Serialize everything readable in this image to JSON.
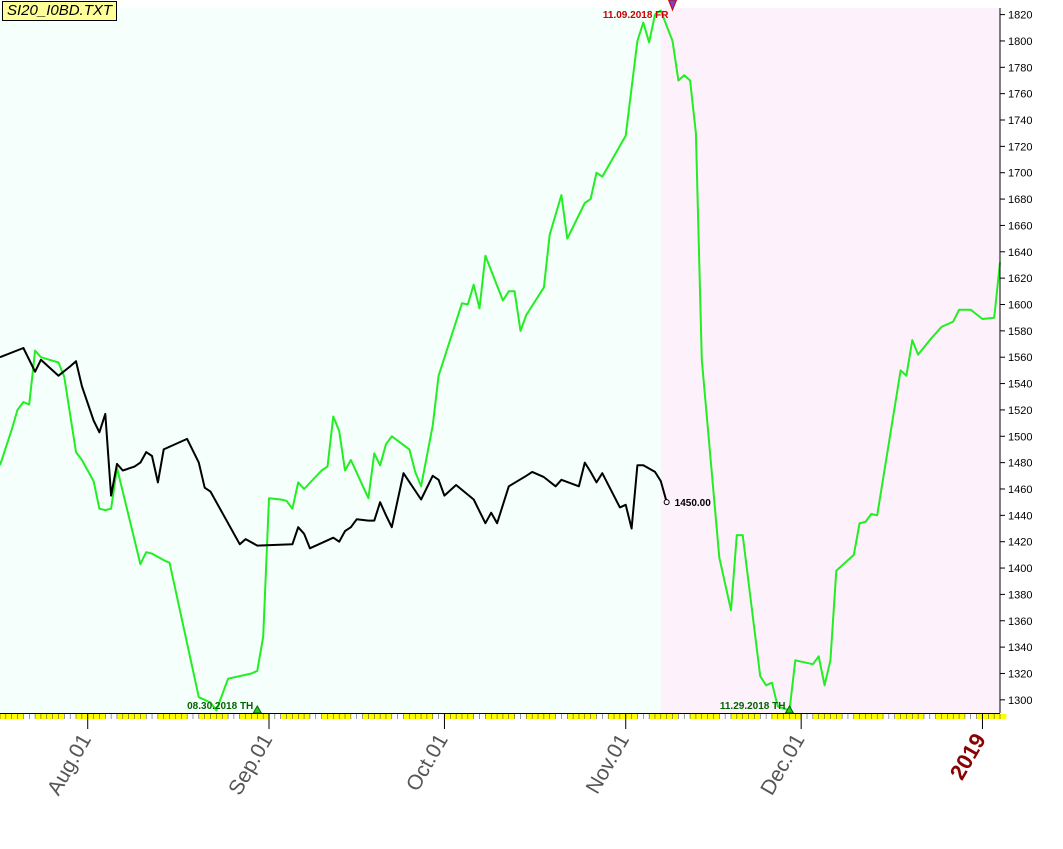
{
  "title": "SI20_I0BD.TXT",
  "chart_data": {
    "type": "line",
    "y_axis": {
      "side": "right",
      "ylim": [
        1290,
        1825
      ],
      "ticks": [
        1300,
        1320,
        1340,
        1360,
        1380,
        1400,
        1420,
        1440,
        1460,
        1480,
        1500,
        1520,
        1540,
        1560,
        1580,
        1600,
        1620,
        1640,
        1660,
        1680,
        1700,
        1720,
        1740,
        1760,
        1780,
        1800,
        1820
      ]
    },
    "x_axis": {
      "xlim": [
        "2018-07-17",
        "2019-01-04"
      ],
      "month_labels": [
        {
          "date": "2018-08-01",
          "label": "Aug.01"
        },
        {
          "date": "2018-09-01",
          "label": "Sep.01"
        },
        {
          "date": "2018-10-01",
          "label": "Oct.01"
        },
        {
          "date": "2018-11-01",
          "label": "Nov.01"
        },
        {
          "date": "2018-12-01",
          "label": "Dec.01"
        },
        {
          "date": "2019-01-01",
          "label": "2019",
          "is_year": true
        }
      ]
    },
    "regions": [
      {
        "from": "2018-07-17",
        "to": "2018-11-07",
        "color": "#f5fffc"
      },
      {
        "from": "2018-11-07",
        "to": "2019-01-04",
        "color": "#fdf2fb"
      }
    ],
    "series": [
      {
        "color": "#22ee22",
        "points": [
          [
            "2018-07-17",
            1478
          ],
          [
            "2018-07-19",
            1505
          ],
          [
            "2018-07-20",
            1520
          ],
          [
            "2018-07-21",
            1526
          ],
          [
            "2018-07-22",
            1524
          ],
          [
            "2018-07-23",
            1565
          ],
          [
            "2018-07-24",
            1560
          ],
          [
            "2018-07-27",
            1556
          ],
          [
            "2018-07-28",
            1545
          ],
          [
            "2018-07-30",
            1488
          ],
          [
            "2018-07-31",
            1482
          ],
          [
            "2018-08-02",
            1466
          ],
          [
            "2018-08-03",
            1445
          ],
          [
            "2018-08-04",
            1444
          ],
          [
            "2018-08-05",
            1445
          ],
          [
            "2018-08-06",
            1476
          ],
          [
            "2018-08-10",
            1403
          ],
          [
            "2018-08-11",
            1412
          ],
          [
            "2018-08-12",
            1411
          ],
          [
            "2018-08-14",
            1406
          ],
          [
            "2018-08-15",
            1404
          ],
          [
            "2018-08-20",
            1302
          ],
          [
            "2018-08-22",
            1298
          ],
          [
            "2018-08-23",
            1292
          ],
          [
            "2018-08-25",
            1316
          ],
          [
            "2018-08-29",
            1320
          ],
          [
            "2018-08-30",
            1322
          ],
          [
            "2018-08-31",
            1348
          ],
          [
            "2018-09-01",
            1453
          ],
          [
            "2018-09-03",
            1452
          ],
          [
            "2018-09-04",
            1451
          ],
          [
            "2018-09-05",
            1445
          ],
          [
            "2018-09-06",
            1465
          ],
          [
            "2018-09-07",
            1460
          ],
          [
            "2018-09-10",
            1474
          ],
          [
            "2018-09-11",
            1477
          ],
          [
            "2018-09-12",
            1515
          ],
          [
            "2018-09-13",
            1504
          ],
          [
            "2018-09-14",
            1474
          ],
          [
            "2018-09-15",
            1482
          ],
          [
            "2018-09-18",
            1453
          ],
          [
            "2018-09-19",
            1487
          ],
          [
            "2018-09-20",
            1478
          ],
          [
            "2018-09-21",
            1494
          ],
          [
            "2018-09-22",
            1500
          ],
          [
            "2018-09-25",
            1490
          ],
          [
            "2018-09-26",
            1473
          ],
          [
            "2018-09-27",
            1462
          ],
          [
            "2018-09-29",
            1508
          ],
          [
            "2018-09-30",
            1546
          ],
          [
            "2018-10-04",
            1601
          ],
          [
            "2018-10-05",
            1600
          ],
          [
            "2018-10-06",
            1615
          ],
          [
            "2018-10-07",
            1597
          ],
          [
            "2018-10-08",
            1637
          ],
          [
            "2018-10-11",
            1603
          ],
          [
            "2018-10-12",
            1610
          ],
          [
            "2018-10-13",
            1610
          ],
          [
            "2018-10-14",
            1580
          ],
          [
            "2018-10-15",
            1592
          ],
          [
            "2018-10-18",
            1613
          ],
          [
            "2018-10-19",
            1653
          ],
          [
            "2018-10-21",
            1683
          ],
          [
            "2018-10-22",
            1650
          ],
          [
            "2018-10-25",
            1677
          ],
          [
            "2018-10-26",
            1680
          ],
          [
            "2018-10-27",
            1700
          ],
          [
            "2018-10-28",
            1697
          ],
          [
            "2018-11-01",
            1728
          ],
          [
            "2018-11-03",
            1800
          ],
          [
            "2018-11-04",
            1814
          ],
          [
            "2018-11-05",
            1799
          ],
          [
            "2018-11-06",
            1820
          ],
          [
            "2018-11-07",
            1823
          ],
          [
            "2018-11-09",
            1800
          ],
          [
            "2018-11-10",
            1770
          ],
          [
            "2018-11-11",
            1774
          ],
          [
            "2018-11-12",
            1770
          ],
          [
            "2018-11-13",
            1730
          ],
          [
            "2018-11-14",
            1558
          ],
          [
            "2018-11-17",
            1408
          ],
          [
            "2018-11-19",
            1368
          ],
          [
            "2018-11-20",
            1425
          ],
          [
            "2018-11-21",
            1425
          ],
          [
            "2018-11-24",
            1318
          ],
          [
            "2018-11-25",
            1311
          ],
          [
            "2018-11-26",
            1313
          ],
          [
            "2018-11-27",
            1295
          ],
          [
            "2018-11-29",
            1292
          ],
          [
            "2018-11-30",
            1330
          ],
          [
            "2018-12-03",
            1327
          ],
          [
            "2018-12-04",
            1333
          ],
          [
            "2018-12-05",
            1311
          ],
          [
            "2018-12-06",
            1330
          ],
          [
            "2018-12-07",
            1398
          ],
          [
            "2018-12-10",
            1410
          ],
          [
            "2018-12-11",
            1434
          ],
          [
            "2018-12-12",
            1435
          ],
          [
            "2018-12-13",
            1441
          ],
          [
            "2018-12-14",
            1440
          ],
          [
            "2018-12-18",
            1550
          ],
          [
            "2018-12-19",
            1546
          ],
          [
            "2018-12-20",
            1573
          ],
          [
            "2018-12-21",
            1562
          ],
          [
            "2018-12-23",
            1573
          ],
          [
            "2018-12-25",
            1583
          ],
          [
            "2018-12-27",
            1587
          ],
          [
            "2018-12-28",
            1596
          ],
          [
            "2018-12-30",
            1596
          ],
          [
            "2019-01-01",
            1589
          ],
          [
            "2019-01-03",
            1590
          ],
          [
            "2019-01-04",
            1632
          ]
        ]
      },
      {
        "color": "#000000",
        "points": [
          [
            "2018-07-17",
            1560
          ],
          [
            "2018-07-21",
            1567
          ],
          [
            "2018-07-23",
            1549
          ],
          [
            "2018-07-24",
            1558
          ],
          [
            "2018-07-27",
            1546
          ],
          [
            "2018-07-29",
            1553
          ],
          [
            "2018-07-30",
            1557
          ],
          [
            "2018-07-31",
            1538
          ],
          [
            "2018-08-02",
            1512
          ],
          [
            "2018-08-03",
            1503
          ],
          [
            "2018-08-04",
            1517
          ],
          [
            "2018-08-05",
            1455
          ],
          [
            "2018-08-06",
            1479
          ],
          [
            "2018-08-07",
            1474
          ],
          [
            "2018-08-09",
            1477
          ],
          [
            "2018-08-10",
            1480
          ],
          [
            "2018-08-11",
            1488
          ],
          [
            "2018-08-12",
            1485
          ],
          [
            "2018-08-13",
            1465
          ],
          [
            "2018-08-14",
            1490
          ],
          [
            "2018-08-18",
            1498
          ],
          [
            "2018-08-20",
            1480
          ],
          [
            "2018-08-21",
            1461
          ],
          [
            "2018-08-22",
            1458
          ],
          [
            "2018-08-27",
            1418
          ],
          [
            "2018-08-28",
            1422
          ],
          [
            "2018-08-30",
            1417
          ],
          [
            "2018-09-05",
            1418
          ],
          [
            "2018-09-06",
            1431
          ],
          [
            "2018-09-07",
            1426
          ],
          [
            "2018-09-08",
            1415
          ],
          [
            "2018-09-12",
            1423
          ],
          [
            "2018-09-13",
            1420
          ],
          [
            "2018-09-14",
            1428
          ],
          [
            "2018-09-15",
            1431
          ],
          [
            "2018-09-16",
            1437
          ],
          [
            "2018-09-18",
            1436
          ],
          [
            "2018-09-19",
            1436
          ],
          [
            "2018-09-20",
            1450
          ],
          [
            "2018-09-21",
            1440
          ],
          [
            "2018-09-22",
            1431
          ],
          [
            "2018-09-24",
            1472
          ],
          [
            "2018-09-27",
            1452
          ],
          [
            "2018-09-29",
            1470
          ],
          [
            "2018-09-30",
            1467
          ],
          [
            "2018-10-01",
            1455
          ],
          [
            "2018-10-03",
            1463
          ],
          [
            "2018-10-06",
            1452
          ],
          [
            "2018-10-08",
            1434
          ],
          [
            "2018-10-09",
            1442
          ],
          [
            "2018-10-10",
            1434
          ],
          [
            "2018-10-12",
            1462
          ],
          [
            "2018-10-15",
            1470
          ],
          [
            "2018-10-16",
            1473
          ],
          [
            "2018-10-18",
            1469
          ],
          [
            "2018-10-20",
            1462
          ],
          [
            "2018-10-21",
            1467
          ],
          [
            "2018-10-24",
            1462
          ],
          [
            "2018-10-25",
            1480
          ],
          [
            "2018-10-26",
            1473
          ],
          [
            "2018-10-27",
            1465
          ],
          [
            "2018-10-28",
            1472
          ],
          [
            "2018-10-31",
            1446
          ],
          [
            "2018-11-01",
            1448
          ],
          [
            "2018-11-02",
            1430
          ],
          [
            "2018-11-03",
            1478
          ],
          [
            "2018-11-04",
            1478
          ],
          [
            "2018-11-06",
            1473
          ],
          [
            "2018-11-07",
            1466
          ],
          [
            "2018-11-08",
            1450
          ]
        ],
        "last_value_label": "1450.00"
      }
    ],
    "annotations": [
      {
        "date": "2018-08-30",
        "value": 1290,
        "label": "08.30.2018 TH",
        "color": "#006600",
        "kind": "low"
      },
      {
        "date": "2018-11-29",
        "value": 1290,
        "label": "11.29.2018 TH",
        "color": "#006600",
        "kind": "low"
      },
      {
        "date": "2018-11-09",
        "value": 1825,
        "label": "11.09.2018 FR",
        "color": "#cc0000",
        "kind": "high"
      }
    ]
  }
}
